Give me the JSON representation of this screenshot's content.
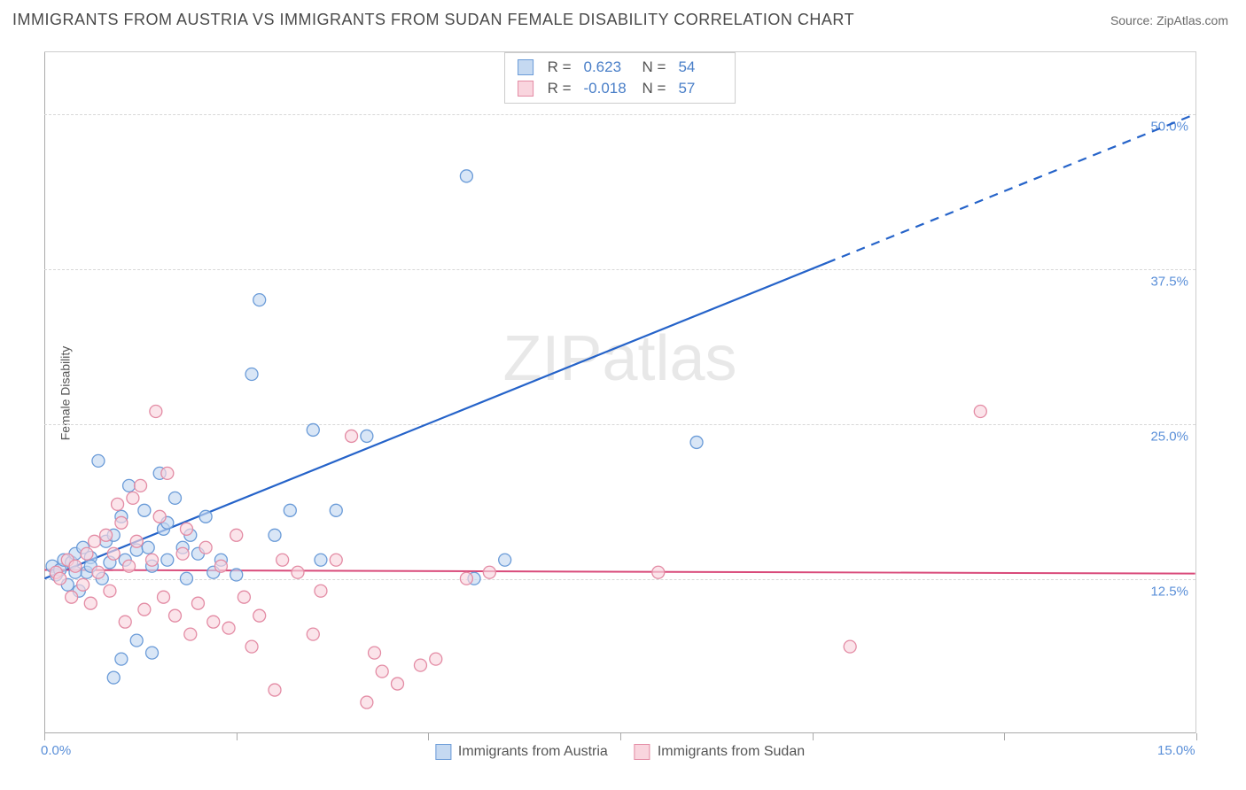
{
  "title": "IMMIGRANTS FROM AUSTRIA VS IMMIGRANTS FROM SUDAN FEMALE DISABILITY CORRELATION CHART",
  "source": "Source: ZipAtlas.com",
  "watermark": {
    "part1": "ZIP",
    "part2": "atlas"
  },
  "chart": {
    "type": "scatter",
    "xlim": [
      0,
      15
    ],
    "ylim": [
      0,
      55
    ],
    "y_axis_label": "Female Disability",
    "x_tick_positions": [
      0,
      2.5,
      5,
      7.5,
      10,
      12.5,
      15
    ],
    "x_tick_labels": {
      "0": "0.0%",
      "15": "15.0%"
    },
    "y_tick_positions": [
      12.5,
      25,
      37.5,
      50
    ],
    "y_tick_labels": {
      "12.5": "12.5%",
      "25": "25.0%",
      "37.5": "37.5%",
      "50": "50.0%"
    },
    "grid_color": "#d8d8d8",
    "background_color": "#ffffff",
    "marker_radius": 7,
    "marker_opacity": 0.65,
    "series": [
      {
        "name": "Immigrants from Austria",
        "color_fill": "#c5d9f1",
        "color_stroke": "#6a9bd8",
        "r": "0.623",
        "n": "54",
        "regression": {
          "x1": 0,
          "y1": 12.5,
          "x2": 10.2,
          "y2": 38.0,
          "x2_dash": 15,
          "y2_dash": 50.0,
          "stroke": "#2563c9",
          "width": 2.2
        },
        "points": [
          [
            0.1,
            13.5
          ],
          [
            0.15,
            12.8
          ],
          [
            0.2,
            13.2
          ],
          [
            0.25,
            14.0
          ],
          [
            0.3,
            12.0
          ],
          [
            0.35,
            13.8
          ],
          [
            0.4,
            14.5
          ],
          [
            0.45,
            11.5
          ],
          [
            0.5,
            15.0
          ],
          [
            0.55,
            13.0
          ],
          [
            0.6,
            14.2
          ],
          [
            0.7,
            22.0
          ],
          [
            0.75,
            12.5
          ],
          [
            0.8,
            15.5
          ],
          [
            0.85,
            13.8
          ],
          [
            0.9,
            16.0
          ],
          [
            1.0,
            17.5
          ],
          [
            1.05,
            14.0
          ],
          [
            1.1,
            20.0
          ],
          [
            1.2,
            14.8
          ],
          [
            1.3,
            18.0
          ],
          [
            1.35,
            15.0
          ],
          [
            1.4,
            13.5
          ],
          [
            1.5,
            21.0
          ],
          [
            1.55,
            16.5
          ],
          [
            1.6,
            14.0
          ],
          [
            1.7,
            19.0
          ],
          [
            1.8,
            15.0
          ],
          [
            1.85,
            12.5
          ],
          [
            1.9,
            16.0
          ],
          [
            2.0,
            14.5
          ],
          [
            2.1,
            17.5
          ],
          [
            2.2,
            13.0
          ],
          [
            2.3,
            14.0
          ],
          [
            2.5,
            12.8
          ],
          [
            2.7,
            29.0
          ],
          [
            2.8,
            35.0
          ],
          [
            3.0,
            16.0
          ],
          [
            3.2,
            18.0
          ],
          [
            3.5,
            24.5
          ],
          [
            3.6,
            14.0
          ],
          [
            3.8,
            18.0
          ],
          [
            4.2,
            24.0
          ],
          [
            5.5,
            45.0
          ],
          [
            5.6,
            12.5
          ],
          [
            6.0,
            14.0
          ],
          [
            1.0,
            6.0
          ],
          [
            0.9,
            4.5
          ],
          [
            1.2,
            7.5
          ],
          [
            1.4,
            6.5
          ],
          [
            8.5,
            23.5
          ],
          [
            1.6,
            17.0
          ],
          [
            0.6,
            13.5
          ],
          [
            0.4,
            13.0
          ]
        ]
      },
      {
        "name": "Immigrants from Sudan",
        "color_fill": "#f9d5de",
        "color_stroke": "#e38ba4",
        "r": "-0.018",
        "n": "57",
        "regression": {
          "x1": 0,
          "y1": 13.2,
          "x2": 15,
          "y2": 12.9,
          "stroke": "#d94a7a",
          "width": 2
        },
        "points": [
          [
            0.15,
            13.0
          ],
          [
            0.2,
            12.5
          ],
          [
            0.3,
            14.0
          ],
          [
            0.35,
            11.0
          ],
          [
            0.4,
            13.5
          ],
          [
            0.5,
            12.0
          ],
          [
            0.55,
            14.5
          ],
          [
            0.6,
            10.5
          ],
          [
            0.65,
            15.5
          ],
          [
            0.7,
            13.0
          ],
          [
            0.8,
            16.0
          ],
          [
            0.85,
            11.5
          ],
          [
            0.9,
            14.5
          ],
          [
            1.0,
            17.0
          ],
          [
            1.05,
            9.0
          ],
          [
            1.1,
            13.5
          ],
          [
            1.2,
            15.5
          ],
          [
            1.25,
            20.0
          ],
          [
            1.3,
            10.0
          ],
          [
            1.4,
            14.0
          ],
          [
            1.45,
            26.0
          ],
          [
            1.5,
            17.5
          ],
          [
            1.55,
            11.0
          ],
          [
            1.6,
            21.0
          ],
          [
            1.7,
            9.5
          ],
          [
            1.8,
            14.5
          ],
          [
            1.85,
            16.5
          ],
          [
            1.9,
            8.0
          ],
          [
            2.0,
            10.5
          ],
          [
            2.1,
            15.0
          ],
          [
            2.2,
            9.0
          ],
          [
            2.3,
            13.5
          ],
          [
            2.4,
            8.5
          ],
          [
            2.5,
            16.0
          ],
          [
            2.6,
            11.0
          ],
          [
            2.7,
            7.0
          ],
          [
            2.8,
            9.5
          ],
          [
            3.0,
            3.5
          ],
          [
            3.1,
            14.0
          ],
          [
            3.3,
            13.0
          ],
          [
            3.5,
            8.0
          ],
          [
            3.6,
            11.5
          ],
          [
            3.8,
            14.0
          ],
          [
            4.0,
            24.0
          ],
          [
            4.2,
            2.5
          ],
          [
            4.3,
            6.5
          ],
          [
            4.4,
            5.0
          ],
          [
            4.6,
            4.0
          ],
          [
            4.9,
            5.5
          ],
          [
            5.1,
            6.0
          ],
          [
            5.5,
            12.5
          ],
          [
            5.8,
            13.0
          ],
          [
            8.0,
            13.0
          ],
          [
            10.5,
            7.0
          ],
          [
            12.2,
            26.0
          ],
          [
            1.15,
            19.0
          ],
          [
            0.95,
            18.5
          ]
        ]
      }
    ],
    "legend_bottom": [
      {
        "label": "Immigrants from Austria",
        "fill": "#c5d9f1",
        "stroke": "#6a9bd8"
      },
      {
        "label": "Immigrants from Sudan",
        "fill": "#f9d5de",
        "stroke": "#e38ba4"
      }
    ]
  }
}
